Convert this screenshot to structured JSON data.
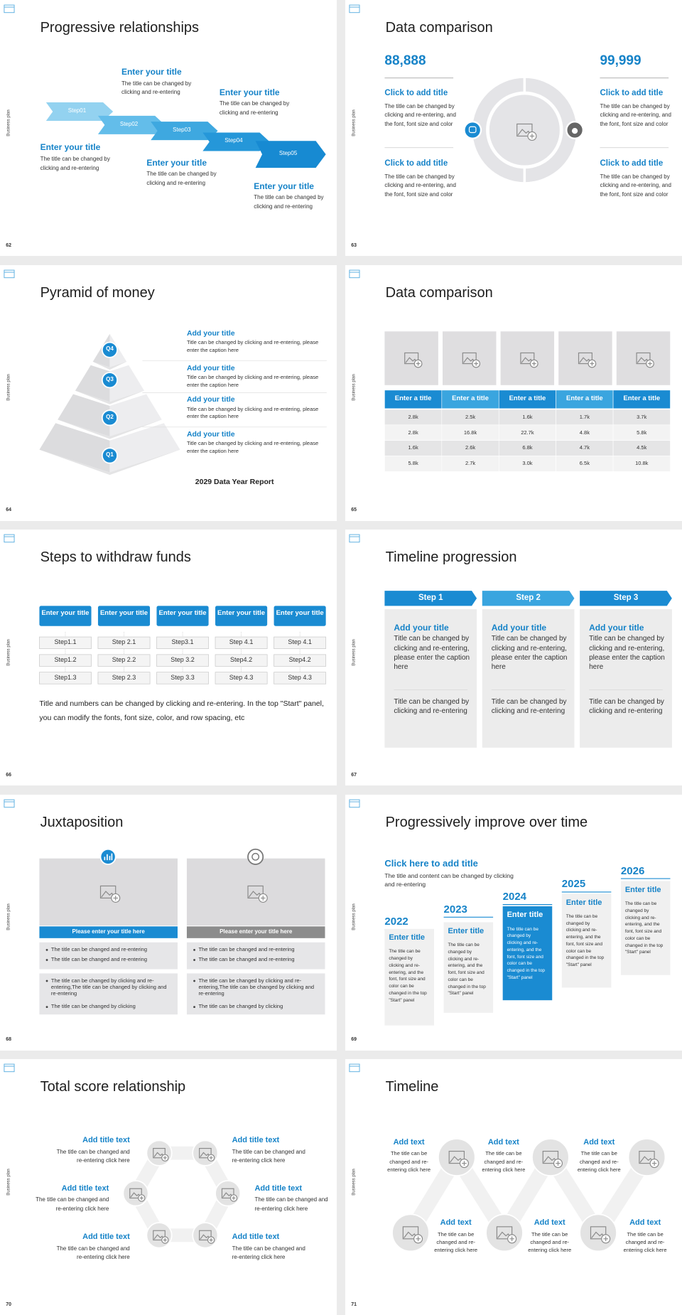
{
  "slides": [
    {
      "number": "62",
      "side_label": "Business plan",
      "title": "Progressive relationships",
      "steps": [
        "Step01",
        "Step02",
        "Step03",
        "Step04",
        "Step05"
      ],
      "items": [
        {
          "title": "Enter your title",
          "body": "The title can be changed by clicking and re-entering"
        },
        {
          "title": "Enter your title",
          "body": "The title can be changed by clicking and re-entering"
        },
        {
          "title": "Enter your title",
          "body": "The title can be changed by clicking and re-entering"
        },
        {
          "title": "Enter your title",
          "body": "The title can be changed by clicking and re-entering"
        },
        {
          "title": "Enter your title",
          "body": "The title can be changed by clicking and re-entering"
        }
      ]
    },
    {
      "number": "63",
      "side_label": "Business plan",
      "title": "Data comparison",
      "big_numbers": [
        "88,888",
        "99,999"
      ],
      "items": [
        {
          "title": "Click to add title",
          "body": "The title can be changed by clicking and re-entering, and the font, font size and color"
        },
        {
          "title": "Click to add title",
          "body": "The title can be changed by clicking and re-entering, and the font, font size and color"
        },
        {
          "title": "Click to add title",
          "body": "The title can be changed by clicking and re-entering, and the font, font size and color"
        },
        {
          "title": "Click to add title",
          "body": "The title can be changed by clicking and re-entering, and the font, font size and color"
        }
      ]
    },
    {
      "number": "64",
      "side_label": "Business plan",
      "title": "Pyramid of money",
      "quarters": [
        "Q4",
        "Q3",
        "Q2",
        "Q1"
      ],
      "items": [
        {
          "title": "Add your title",
          "body": "Title can be changed by clicking and re-entering, please enter the caption here"
        },
        {
          "title": "Add your title",
          "body": "Title can be changed by clicking and re-entering, please enter the caption here"
        },
        {
          "title": "Add your title",
          "body": "Title can be changed by clicking and re-entering, please enter the caption here"
        },
        {
          "title": "Add your title",
          "body": "Title can be changed by clicking and re-entering, please enter the caption here"
        }
      ],
      "footer": "2029 Data Year Report"
    },
    {
      "number": "65",
      "side_label": "Business plan",
      "title": "Data comparison",
      "headers": [
        "Enter a title",
        "Enter a title",
        "Enter a title",
        "Enter a title",
        "Enter a title"
      ],
      "rows": [
        [
          "2.8k",
          "2.5k",
          "1.6k",
          "1.7k",
          "3.7k"
        ],
        [
          "2.8k",
          "16.8k",
          "22.7k",
          "4.8k",
          "5.8k"
        ],
        [
          "1.6k",
          "2.6k",
          "6.8k",
          "4.7k",
          "4.5k"
        ],
        [
          "5.8k",
          "2.7k",
          "3.0k",
          "6.5k",
          "10.8k"
        ]
      ]
    },
    {
      "number": "66",
      "side_label": "Business plan",
      "title": "Steps to withdraw funds",
      "headers": [
        "Enter your title",
        "Enter your title",
        "Enter your title",
        "Enter your title",
        "Enter your title"
      ],
      "steps": [
        [
          "Step1.1",
          "Step1.2",
          "Step1.3"
        ],
        [
          "Step 2.1",
          "Step 2.2",
          "Step 2.3"
        ],
        [
          "Step3.1",
          "Step 3.2",
          "Step 3.3"
        ],
        [
          "Step 4.1",
          "Step4.2",
          "Step 4.3"
        ],
        [
          "Step 4.1",
          "Step4.2",
          "Step 4.3"
        ]
      ],
      "note": "Title and numbers can be changed by clicking and re-entering. In the top \"Start\" panel, you can modify the fonts, font size, color, and row spacing, etc"
    },
    {
      "number": "67",
      "side_label": "Business plan",
      "title": "Timeline progression",
      "steps": [
        "Step 1",
        "Step 2",
        "Step 3"
      ],
      "cards": [
        {
          "title": "Add your title",
          "body": "Title can be changed by clicking and re-entering, please enter the caption here",
          "body2": "Title can be changed by clicking and re-entering"
        },
        {
          "title": "Add your title",
          "body": "Title can be changed by clicking and re-entering, please enter the caption here",
          "body2": "Title can be changed by clicking and re-entering"
        },
        {
          "title": "Add your title",
          "body": "Title can be changed by clicking and re-entering, please enter the caption here",
          "body2": "Title can be changed by clicking and re-entering"
        }
      ]
    },
    {
      "number": "68",
      "side_label": "Business plan",
      "title": "Juxtaposition",
      "panels": [
        {
          "caption": "Please enter your title here",
          "bullets": [
            "The title can be changed and re-entering",
            "The title can be changed and re-entering"
          ],
          "bullets2": [
            "The title can be changed by clicking and re-entering,The title can be changed by clicking and re-entering",
            "The title can be changed by clicking"
          ]
        },
        {
          "caption": "Please enter your title here",
          "bullets": [
            "The title can be changed and re-entering",
            "The title can be changed and re-entering"
          ],
          "bullets2": [
            "The title can be changed by clicking and re-entering,The title can be changed by clicking and re-entering",
            "The title can be changed by clicking"
          ]
        }
      ]
    },
    {
      "number": "69",
      "side_label": "Business plan",
      "title": "Progressively improve over time",
      "heading": "Click here to add title",
      "intro": "The title and content can be changed by clicking and re-entering",
      "columns": [
        {
          "year": "2022",
          "title": "Enter title",
          "body": "The title can be changed by clicking and re-entering, and the font, font size and color can be changed in the top \"Start\" panel"
        },
        {
          "year": "2023",
          "title": "Enter title",
          "body": "The title can be changed by clicking and re-entering, and the font, font size and color can be changed in the top \"Start\" panel"
        },
        {
          "year": "2024",
          "title": "Enter title",
          "body": "The title can be changed by clicking and re-entering, and the font, font size and color can be changed in the top \"Start\" panel"
        },
        {
          "year": "2025",
          "title": "Enter title",
          "body": "The title can be changed by clicking and re-entering, and the font, font size and color can be changed in the top \"Start\" panel"
        },
        {
          "year": "2026",
          "title": "Enter title",
          "body": "The title can be changed by clicking and re-entering, and the font, font size and color can be changed in the top \"Start\" panel"
        }
      ]
    },
    {
      "number": "70",
      "side_label": "Business plan",
      "title": "Total score relationship",
      "items": [
        {
          "title": "Add title text",
          "body": "The title can be changed and re-entering click here"
        },
        {
          "title": "Add title text",
          "body": "The title can be changed and re-entering click here"
        },
        {
          "title": "Add title text",
          "body": "The title can be changed and re-entering click here"
        },
        {
          "title": "Add title text",
          "body": "The title can be changed and re-entering click here"
        },
        {
          "title": "Add title text",
          "body": "The title can be changed and re-entering click here"
        },
        {
          "title": "Add title text",
          "body": "The title can be changed and re-entering click here"
        }
      ]
    },
    {
      "number": "71",
      "side_label": "Business plan",
      "title": "Timeline",
      "items": [
        {
          "title": "Add text",
          "body": "The title can be changed and re-entering click here"
        },
        {
          "title": "Add text",
          "body": "The title can be changed and re-entering click here"
        },
        {
          "title": "Add text",
          "body": "The title can be changed and re-entering click here"
        },
        {
          "title": "Add text",
          "body": "The title can be changed and re-entering click here"
        },
        {
          "title": "Add text",
          "body": "The title can be changed and re-entering click here"
        },
        {
          "title": "Add text",
          "body": "The title can be changed and re-entering click here"
        }
      ]
    }
  ]
}
